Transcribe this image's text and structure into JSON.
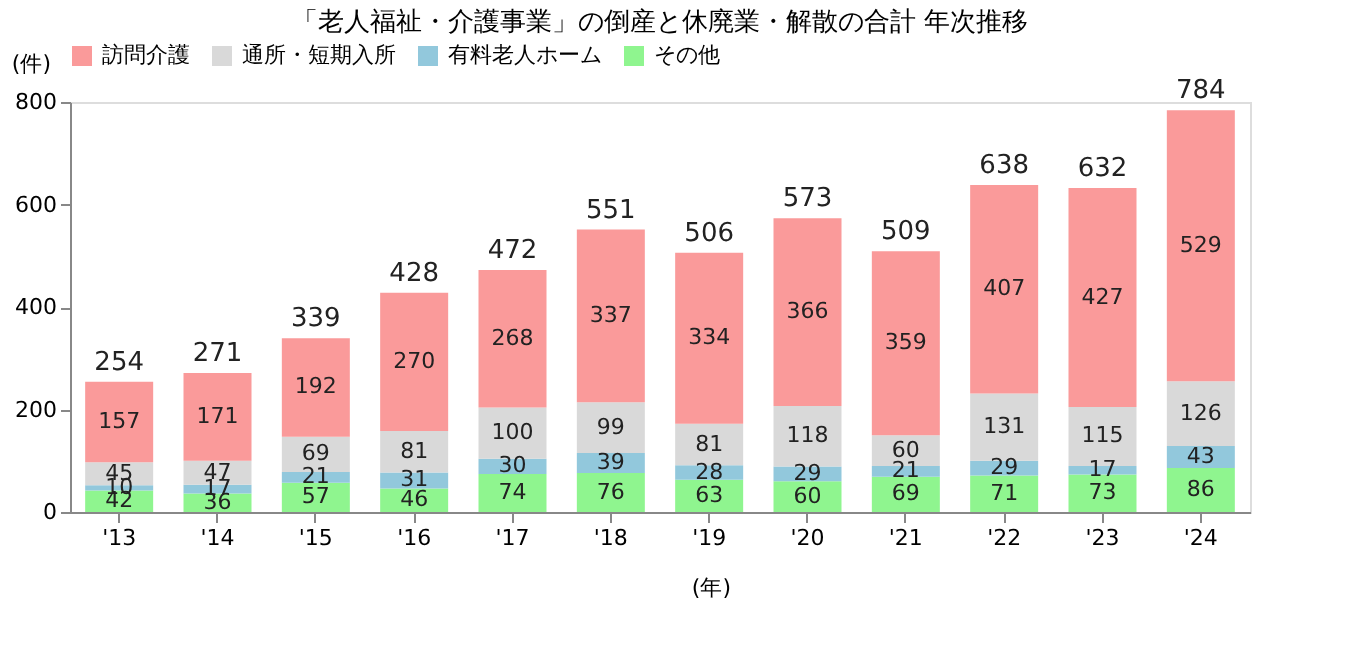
{
  "chart_data": {
    "type": "bar",
    "stacked": true,
    "title": "「老人福祉・介護事業」の倒産と休廃業・解散の合計  年次推移",
    "ylabel": "(件)",
    "xlabel": "(年)",
    "categories": [
      "'13",
      "'14",
      "'15",
      "'16",
      "'17",
      "'18",
      "'19",
      "'20",
      "'21",
      "'22",
      "'23",
      "'24"
    ],
    "series": [
      {
        "name": "その他",
        "color": "#8ff58f",
        "values": [
          42,
          36,
          57,
          46,
          74,
          76,
          63,
          60,
          69,
          71,
          73,
          86
        ]
      },
      {
        "name": "有料老人ホーム",
        "color": "#92c8dc",
        "values": [
          10,
          17,
          21,
          31,
          30,
          39,
          28,
          29,
          21,
          29,
          17,
          43
        ]
      },
      {
        "name": "通所・短期入所",
        "color": "#d9d9d9",
        "values": [
          45,
          47,
          69,
          81,
          100,
          99,
          81,
          118,
          60,
          131,
          115,
          126
        ]
      },
      {
        "name": "訪問介護",
        "color": "#fa9a9a",
        "values": [
          157,
          171,
          192,
          270,
          268,
          337,
          334,
          366,
          359,
          407,
          427,
          529
        ]
      }
    ],
    "totals": [
      "254",
      "271",
      "339",
      "428",
      "472",
      "551",
      "506",
      "573",
      "509",
      "638",
      "632",
      "784"
    ],
    "data_labels": true,
    "ylim": [
      0,
      800
    ],
    "yticks": [
      0,
      200,
      400,
      600,
      800
    ],
    "grid": false,
    "legend": "top"
  }
}
